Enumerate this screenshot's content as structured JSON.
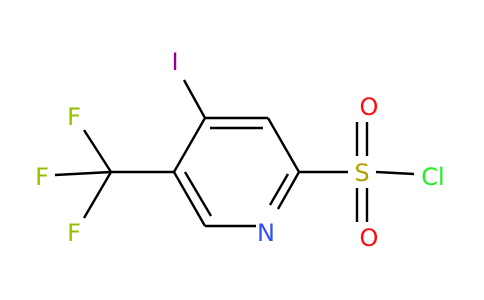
{
  "molecule": {
    "atoms": [
      {
        "label": "I"
      },
      {
        "label": "F"
      },
      {
        "label": "F"
      },
      {
        "label": "F"
      },
      {
        "label": "N"
      },
      {
        "label": "S"
      },
      {
        "label": "O"
      },
      {
        "label": "O"
      },
      {
        "label": "Cl"
      }
    ]
  }
}
